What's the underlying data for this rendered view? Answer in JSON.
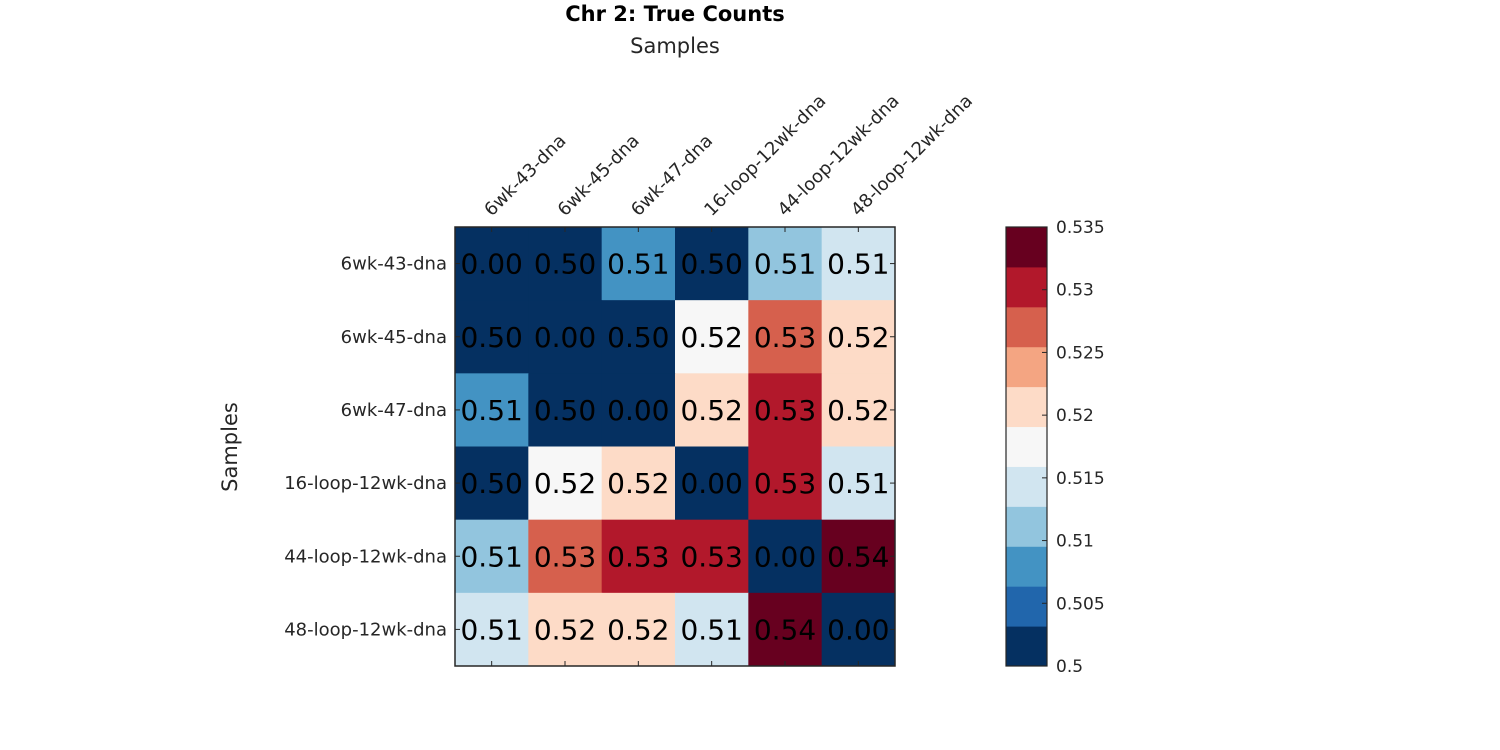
{
  "chart_data": {
    "type": "heatmap",
    "title": "Chr 2: True Counts",
    "xlabel": "Samples",
    "ylabel": "Samples",
    "x_categories": [
      "6wk-43-dna",
      "6wk-45-dna",
      "6wk-47-dna",
      "16-loop-12wk-dna",
      "44-loop-12wk-dna",
      "48-loop-12wk-dna"
    ],
    "y_categories": [
      "6wk-43-dna",
      "6wk-45-dna",
      "6wk-47-dna",
      "16-loop-12wk-dna",
      "44-loop-12wk-dna",
      "48-loop-12wk-dna"
    ],
    "values": [
      [
        0.0,
        0.5,
        0.507,
        0.5,
        0.511,
        0.513
      ],
      [
        0.5,
        0.0,
        0.5,
        0.516,
        0.527,
        0.521
      ],
      [
        0.507,
        0.5,
        0.0,
        0.521,
        0.531,
        0.521
      ],
      [
        0.5,
        0.516,
        0.521,
        0.0,
        0.531,
        0.513
      ],
      [
        0.511,
        0.527,
        0.531,
        0.531,
        0.0,
        0.537
      ],
      [
        0.513,
        0.521,
        0.521,
        0.513,
        0.537,
        0.0
      ]
    ],
    "cell_labels": [
      [
        "0.00",
        "0.50",
        "0.51",
        "0.50",
        "0.51",
        "0.51"
      ],
      [
        "0.50",
        "0.00",
        "0.50",
        "0.52",
        "0.53",
        "0.52"
      ],
      [
        "0.51",
        "0.50",
        "0.00",
        "0.52",
        "0.53",
        "0.52"
      ],
      [
        "0.50",
        "0.52",
        "0.52",
        "0.00",
        "0.53",
        "0.51"
      ],
      [
        "0.51",
        "0.53",
        "0.53",
        "0.53",
        "0.00",
        "0.54"
      ],
      [
        "0.51",
        "0.52",
        "0.52",
        "0.51",
        "0.54",
        "0.00"
      ]
    ],
    "colorbar": {
      "range": [
        0.5,
        0.535
      ],
      "ticks": [
        0.5,
        0.505,
        0.51,
        0.515,
        0.52,
        0.525,
        0.53,
        0.535
      ],
      "tick_labels": [
        "0.5",
        "0.505",
        "0.51",
        "0.515",
        "0.52",
        "0.525",
        "0.53",
        "0.535"
      ],
      "colors": [
        "#053061",
        "#2166ac",
        "#4393c3",
        "#92c5de",
        "#d1e5f0",
        "#f7f7f7",
        "#fddbc7",
        "#f4a582",
        "#d6604d",
        "#b2182b",
        "#67001f"
      ],
      "placement": "right"
    },
    "x_axis_position": "top",
    "grid": false
  }
}
